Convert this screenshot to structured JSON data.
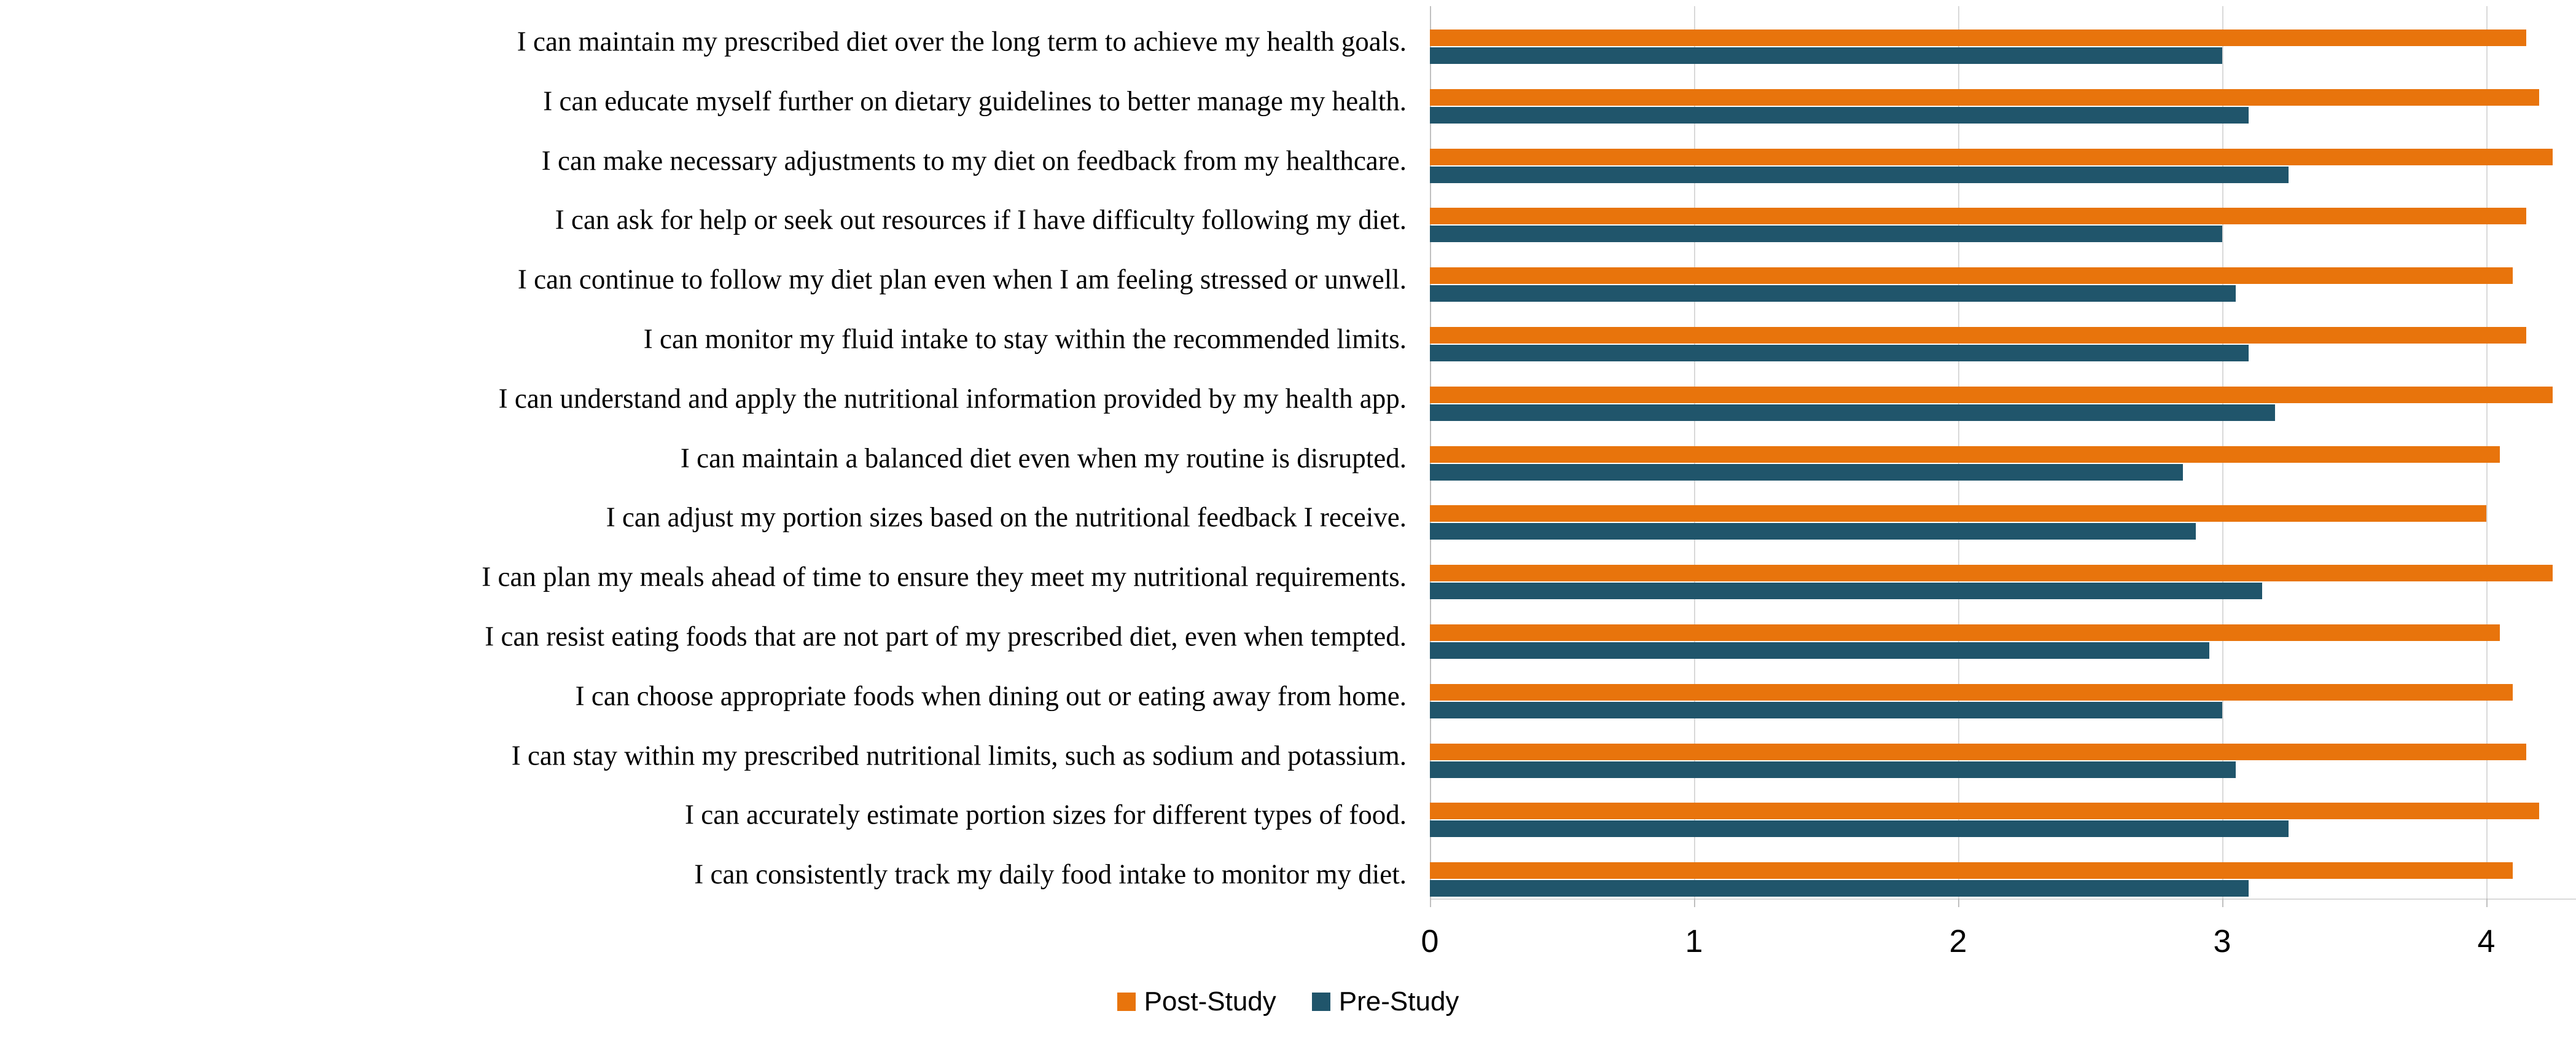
{
  "chart_data": {
    "type": "bar",
    "orientation": "horizontal",
    "title": "",
    "xlabel": "",
    "ylabel": "",
    "categories": [
      "I can maintain my prescribed diet over the long term to achieve my health goals.",
      "I can educate myself further on dietary guidelines to better manage my health.",
      "I can make necessary adjustments to my diet on feedback from my healthcare.",
      "I can ask for help or seek out resources if I have difficulty following my diet.",
      "I can continue to follow my diet plan even when I am feeling stressed or unwell.",
      "I can monitor my fluid intake to stay within the recommended limits.",
      "I can understand and apply the nutritional information provided by my health app.",
      "I can maintain a balanced diet even when my routine is disrupted.",
      "I can adjust my portion sizes based on the nutritional feedback I receive.",
      "I can plan my meals ahead of time to ensure they meet my nutritional requirements.",
      "I can resist eating foods that are not part of my prescribed diet, even when tempted.",
      "I can choose appropriate foods when dining out or eating away from home.",
      "I can stay within my prescribed nutritional limits, such as sodium and potassium.",
      "I can accurately estimate portion sizes for different types of food.",
      "I can consistently track my daily food intake to monitor my diet."
    ],
    "series": [
      {
        "name": "Post-Study",
        "color": "#E8740C",
        "values": [
          4.15,
          4.2,
          4.25,
          4.15,
          4.1,
          4.15,
          4.25,
          4.05,
          4.0,
          4.25,
          4.05,
          4.1,
          4.15,
          4.2,
          4.1
        ]
      },
      {
        "name": "Pre-Study",
        "color": "#20556B",
        "values": [
          3.0,
          3.1,
          3.25,
          3.0,
          3.05,
          3.1,
          3.2,
          2.85,
          2.9,
          3.15,
          2.95,
          3.0,
          3.05,
          3.25,
          3.1
        ]
      }
    ],
    "x_ticks": [
      0,
      1,
      2,
      3,
      4
    ],
    "xlim": [
      0,
      4.34
    ],
    "grid": "vertical-major",
    "legend_position": "bottom-center",
    "colors": {
      "gridline": "#D9D9D9",
      "axis_line": "#C0C0C0",
      "text": "#000000",
      "background": "#FFFFFF"
    }
  }
}
